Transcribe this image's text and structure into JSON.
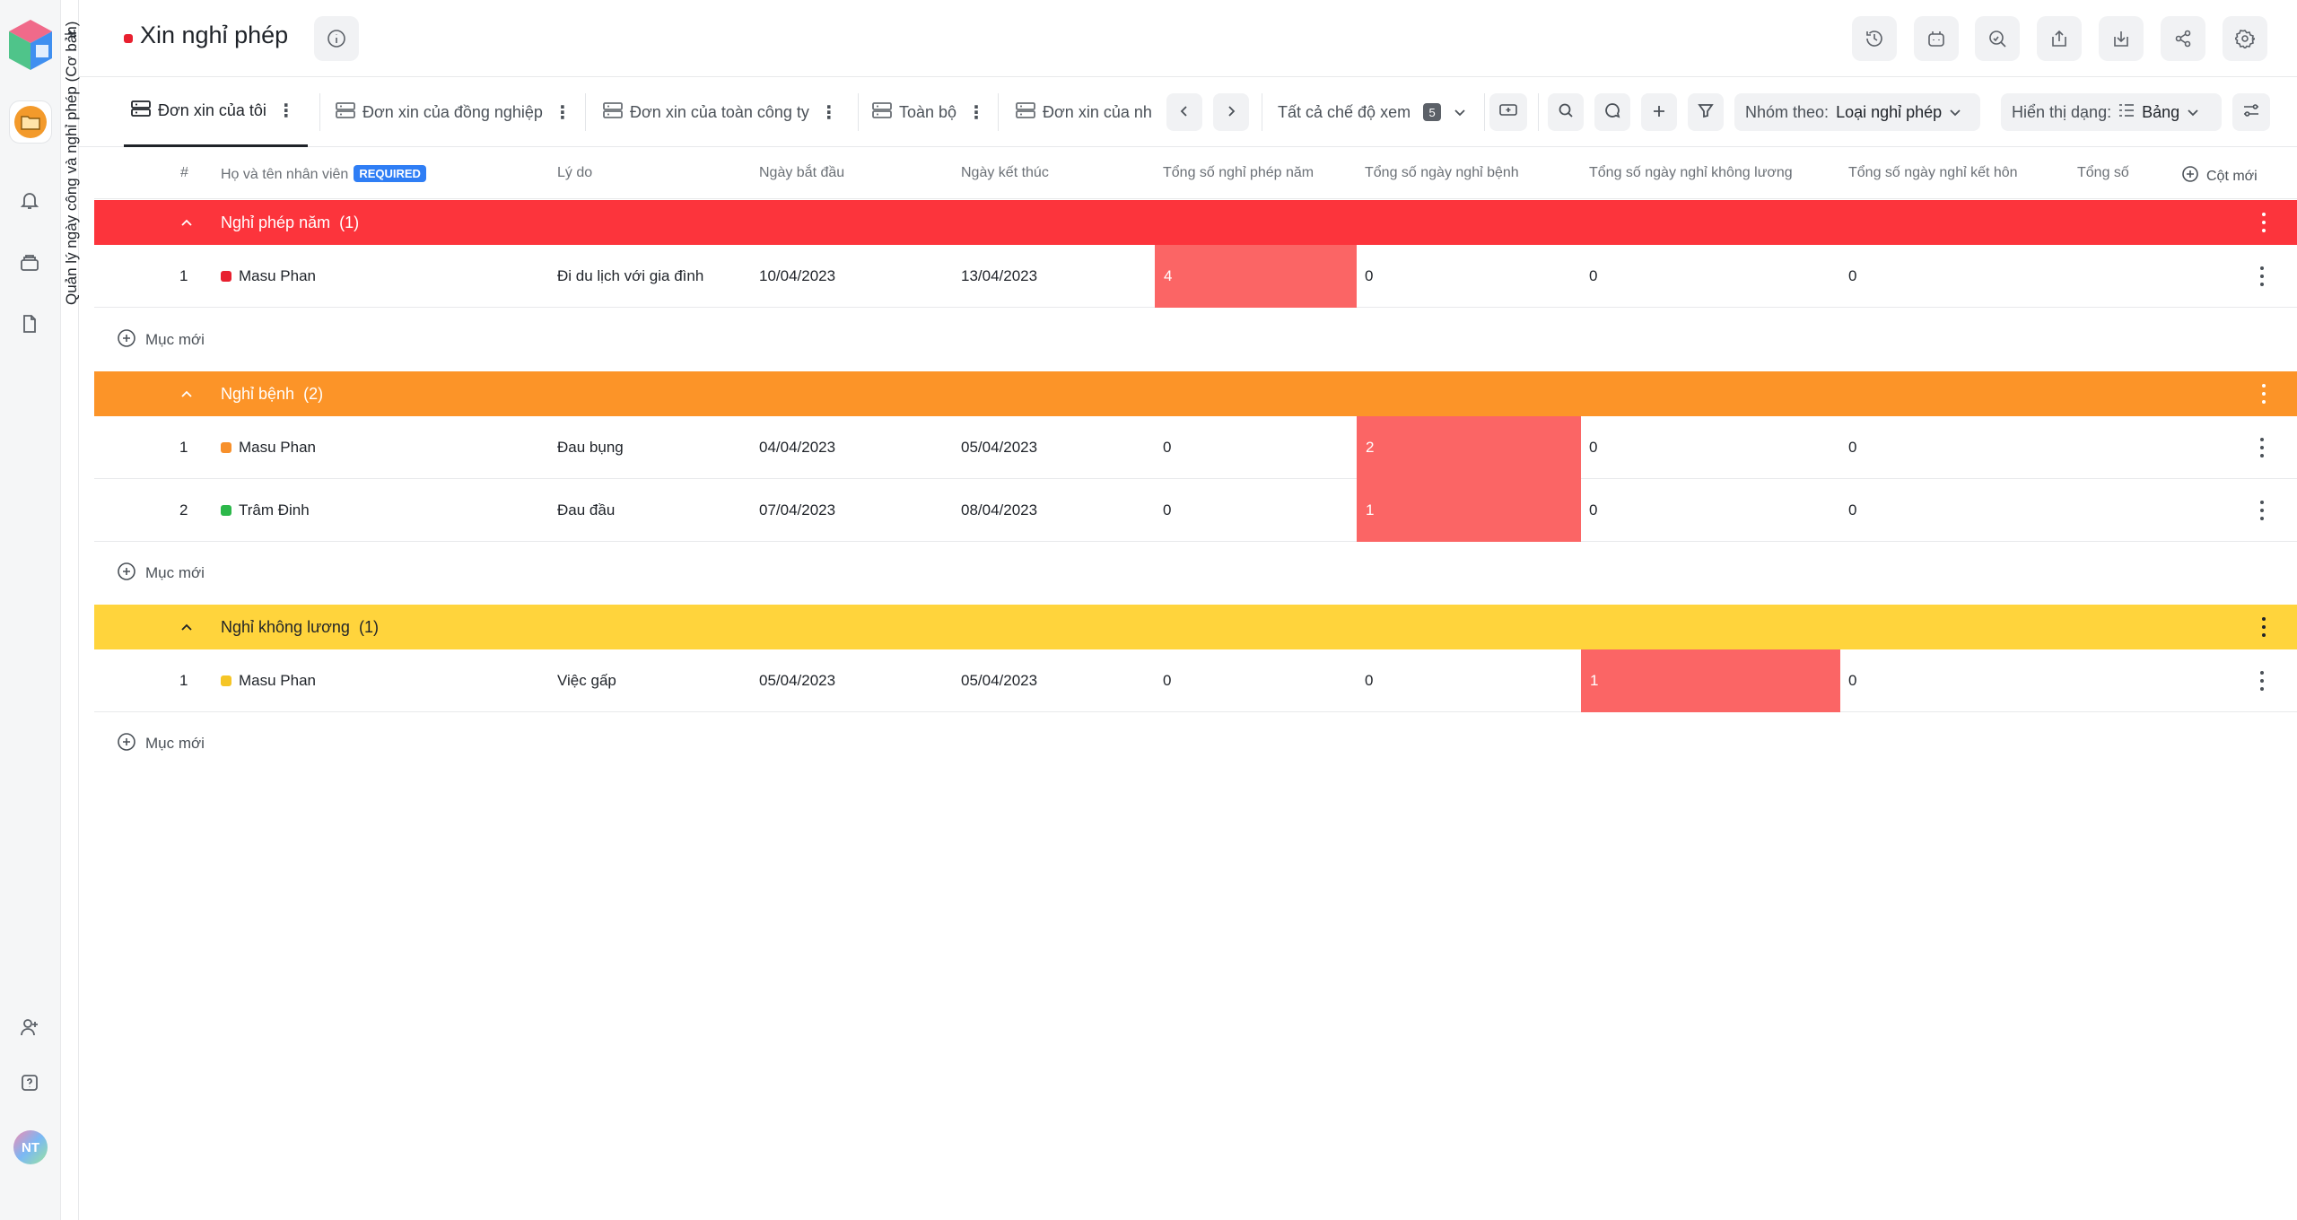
{
  "sidebar": {
    "vertical_title": "Quản lý ngày công và nghỉ phép (Cơ bản)",
    "workspace_initials": "NT"
  },
  "header": {
    "title": "Xin nghỉ phép"
  },
  "tabs": [
    {
      "label": "Đơn xin của tôi",
      "active": true
    },
    {
      "label": "Đơn xin của đồng nghiệp",
      "active": false
    },
    {
      "label": "Đơn xin của toàn công ty",
      "active": false
    },
    {
      "label": "Toàn bộ",
      "active": false
    },
    {
      "label": "Đơn xin của nh",
      "active": false
    }
  ],
  "toolbar": {
    "view_mode_label": "Tất cả chế độ xem",
    "view_count": "5",
    "group_by_prefix": "Nhóm theo:",
    "group_by_value": "Loại nghỉ phép",
    "display_prefix": "Hiển thị dạng:",
    "display_value": "Bảng"
  },
  "columns": {
    "index": "#",
    "name": "Họ và tên nhân viên",
    "required": "REQUIRED",
    "reason": "Lý do",
    "start": "Ngày bắt đầu",
    "end": "Ngày kết thúc",
    "annual": "Tổng số nghỉ phép năm",
    "sick": "Tổng số ngày nghỉ bệnh",
    "unpaid": "Tổng số ngày nghỉ không lương",
    "wedding": "Tổng số ngày nghỉ kết hôn",
    "total": "Tổng số",
    "new_column": "Cột mới"
  },
  "add_item_label": "Mục mới",
  "groups": [
    {
      "label": "Nghỉ phép năm",
      "count": "(1)",
      "color": "#fc343c",
      "rows": [
        {
          "index": "1",
          "name": "Masu Phan",
          "status_color": "#e8202f",
          "reason": "Đi du lịch với gia đình",
          "start": "10/04/2023",
          "end": "13/04/2023",
          "annual": "4",
          "sick": "0",
          "unpaid": "0",
          "wedding": "0"
        }
      ]
    },
    {
      "label": "Nghỉ bệnh",
      "count": "(2)",
      "color": "#fc9428",
      "rows": [
        {
          "index": "1",
          "name": "Masu Phan",
          "status_color": "#f7902b",
          "reason": "Đau bụng",
          "start": "04/04/2023",
          "end": "05/04/2023",
          "annual": "0",
          "sick": "2",
          "unpaid": "0",
          "wedding": "0"
        },
        {
          "index": "2",
          "name": "Trâm Đinh",
          "status_color": "#2cb84a",
          "reason": "Đau đầu",
          "start": "07/04/2023",
          "end": "08/04/2023",
          "annual": "0",
          "sick": "1",
          "unpaid": "0",
          "wedding": "0"
        }
      ]
    },
    {
      "label": "Nghỉ không lương",
      "count": "(1)",
      "color": "#ffd43c",
      "rows": [
        {
          "index": "1",
          "name": "Masu Phan",
          "status_color": "#f5c526",
          "reason": "Việc gấp",
          "start": "05/04/2023",
          "end": "05/04/2023",
          "annual": "0",
          "sick": "0",
          "unpaid": "1",
          "wedding": "0"
        }
      ]
    }
  ]
}
